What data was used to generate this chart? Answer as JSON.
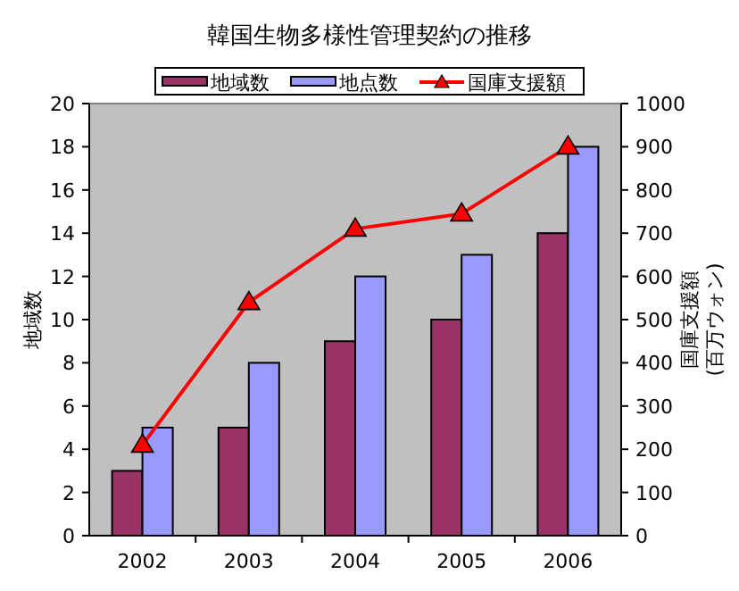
{
  "chart_data": {
    "type": "bar",
    "title": "韓国生物多様性管理契約の推移",
    "ylabel": "地域数",
    "y2label": "国庫支援額\n(百万ウォン)",
    "categories": [
      "2002",
      "2003",
      "2004",
      "2005",
      "2006"
    ],
    "series": [
      {
        "name": "地域数",
        "color": "#993366",
        "values": [
          3,
          5,
          9,
          10,
          14
        ]
      },
      {
        "name": "地点数",
        "color": "#9999ff",
        "values": [
          5,
          8,
          12,
          13,
          18
        ]
      },
      {
        "name": "国庫支援額",
        "type": "line",
        "axis": "y2",
        "color": "#ff0000",
        "marker": "triangle",
        "values": [
          210,
          540,
          710,
          745,
          900
        ]
      }
    ],
    "ylim": [
      0,
      20
    ],
    "yticks": [
      0,
      2,
      4,
      6,
      8,
      10,
      12,
      14,
      16,
      18,
      20
    ],
    "y2lim": [
      0,
      1000
    ],
    "y2ticks": [
      0,
      100,
      200,
      300,
      400,
      500,
      600,
      700,
      800,
      900,
      1000
    ],
    "grid": false,
    "legend": "top"
  }
}
